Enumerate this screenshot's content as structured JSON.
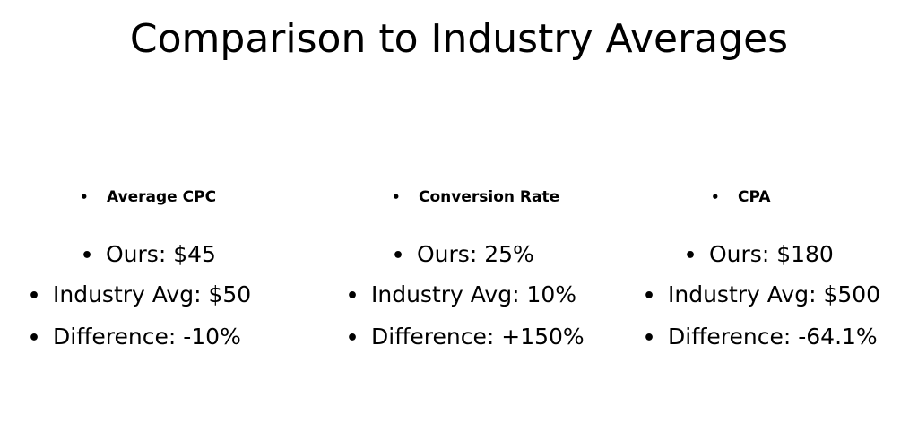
{
  "title": "Comparison to Industry Averages",
  "bullet_glyph": "•",
  "columns": [
    {
      "heading": "Average CPC",
      "rows": [
        "Ours: $45",
        "Industry Avg: $50",
        "Difference: -10%"
      ]
    },
    {
      "heading": "Conversion Rate",
      "rows": [
        "Ours: 25%",
        "Industry Avg: 10%",
        "Difference: +150%"
      ]
    },
    {
      "heading": "CPA",
      "rows": [
        "Ours: $180",
        "Industry Avg: $500",
        "Difference: -64.1%"
      ]
    }
  ]
}
